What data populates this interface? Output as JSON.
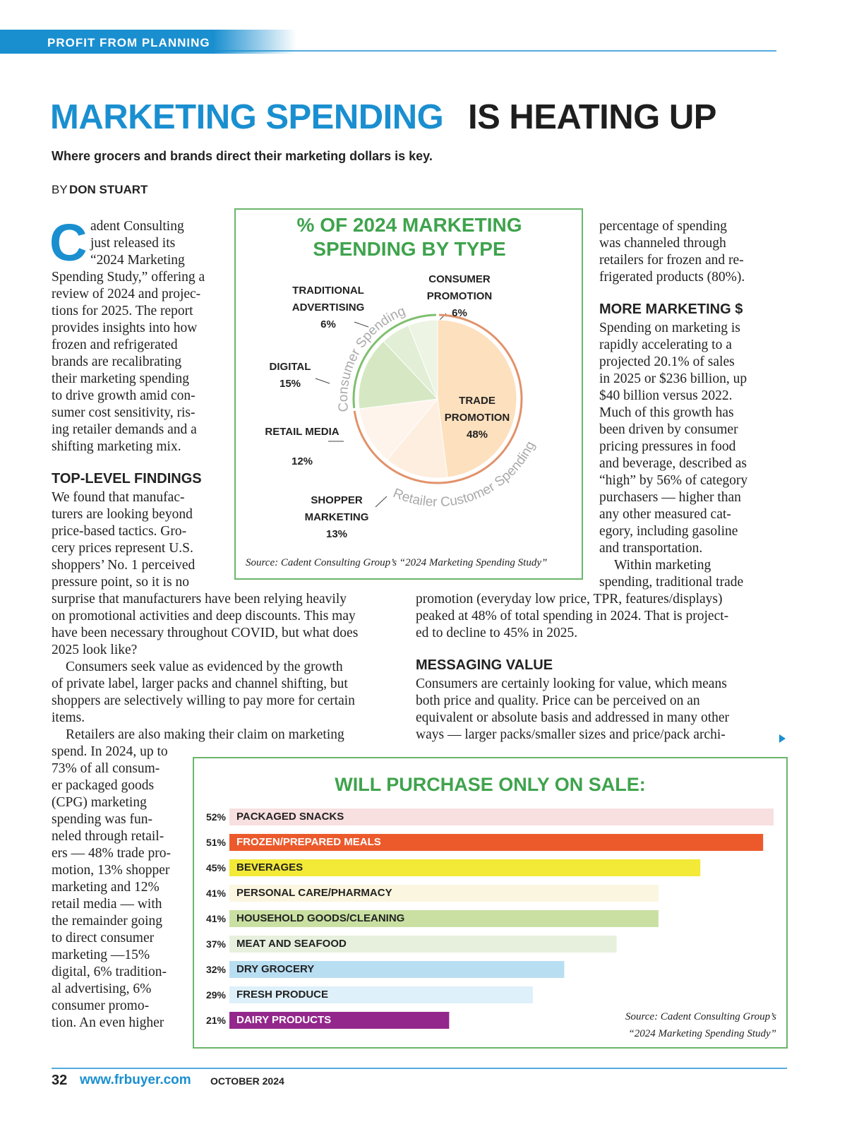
{
  "header": {
    "section": "PROFIT FROM PLANNING",
    "title_blue": "MARKETING SPENDING",
    "title_black": "IS HEATING UP",
    "deck": "Where grocers and brands direct their marketing dollars is key.",
    "byline_prefix": "BY",
    "byline_name": "DON STUART"
  },
  "drop_cap": "C",
  "body": {
    "intro": [
      "adent Consulting",
      "just released its",
      "“2024 Marketing",
      "Spending Study,” offering a",
      "review of 2024 and projec-",
      "tions for 2025. The report",
      "provides insights into how",
      "frozen and refrigerated",
      "brands are recalibrating",
      "their marketing spending",
      "to drive growth amid con-",
      "sumer cost sensitivity, ris-",
      "ing retailer demands and a",
      "shifting marketing mix."
    ],
    "heading_findings": "TOP-LEVEL FINDINGS",
    "findings": [
      "We found that manufac-",
      "turers are looking beyond",
      "price-based tactics. Gro-",
      "cery prices represent U.S.",
      "shoppers’ No. 1 perceived",
      "pressure point, so it is no",
      "surprise that manufacturers have been relying heavily",
      "on promotional activities and deep discounts. This may",
      "have been necessary throughout COVID, but what does",
      "2025 look like?",
      "Consumers seek value as evidenced by the growth",
      "of private label, larger packs and channel shifting, but",
      "shoppers are selectively willing to pay more for certain",
      "items.",
      "Retailers are also making their claim on marketing",
      "spend. In 2024, up to",
      "73% of all consum-",
      "er packaged goods",
      "(CPG) marketing",
      "spending was fun-",
      "neled through retail-",
      "ers — 48% trade pro-",
      "motion, 13% shopper",
      "marketing and 12%",
      "retail media — with",
      "the remainder going",
      "to direct consumer",
      "marketing —15%",
      "digital, 6% tradition-",
      "al advertising, 6%",
      "consumer promo-",
      "tion. An even higher"
    ],
    "intro_continued": [
      "percentage of spending",
      "was channeled through",
      "retailers for frozen and re-",
      "frigerated products (80%)."
    ],
    "heading_more": "MORE MARKETING $",
    "more": [
      "Spending on marketing is",
      "rapidly accelerating to a",
      "projected 20.1% of sales",
      "in 2025 or $236 billion, up",
      "$40 billion versus 2022.",
      "Much of this growth has",
      "been driven by consumer",
      "pricing pressures in food",
      "and beverage, described as",
      "“high” by 56% of category",
      "purchasers — higher than",
      "any other measured cat-",
      "egory, including gasoline",
      "and transportation.",
      "Within marketing",
      "spending, traditional trade",
      "promotion (everyday low price, TPR, features/displays)",
      "peaked at 48% of total spending in 2024. That is project-",
      "ed to decline to 45% in 2025."
    ],
    "heading_messaging": "MESSAGING VALUE",
    "messaging": [
      "Consumers are certainly looking for value, which means",
      "both price and quality. Price can be perceived on an",
      "equivalent or absolute basis and addressed in many other",
      "ways — larger packs/smaller sizes and price/pack archi-"
    ]
  },
  "chart_data": [
    {
      "type": "pie",
      "title": "% OF 2024 MARKETING SPENDING BY TYPE",
      "categories": [
        "TRADE PROMOTION",
        "SHOPPER MARKETING",
        "RETAIL MEDIA",
        "DIGITAL",
        "TRADITIONAL ADVERTISING",
        "CONSUMER PROMOTION"
      ],
      "values": [
        48,
        13,
        12,
        15,
        6,
        6
      ],
      "value_labels": [
        "48%",
        "13%",
        "12%",
        "15%",
        "6%",
        "6%"
      ],
      "colors": [
        "#fde0bd",
        "#fdeedf",
        "#fef4ec",
        "#d6e8c3",
        "#e2eed5",
        "#edf4e4"
      ],
      "groups": [
        {
          "name": "Retailer Customer Spending",
          "color": "#e1926a"
        },
        {
          "name": "Consumer Spending",
          "color": "#7fbf6e"
        }
      ],
      "source": "Source: Cadent Consulting Group’s “2024 Marketing Spending Study”"
    },
    {
      "type": "bar",
      "title": "WILL PURCHASE ONLY ON SALE:",
      "categories": [
        "PACKAGED SNACKS",
        "FROZEN/PREPARED MEALS",
        "BEVERAGES",
        "PERSONAL CARE/PHARMACY",
        "HOUSEHOLD GOODS/CLEANING",
        "MEAT AND SEAFOOD",
        "DRY GROCERY",
        "FRESH PRODUCE",
        "DAIRY PRODUCTS"
      ],
      "values": [
        52,
        51,
        45,
        41,
        41,
        37,
        32,
        29,
        21
      ],
      "value_labels": [
        "52%",
        "51%",
        "45%",
        "41%",
        "41%",
        "37%",
        "32%",
        "29%",
        "21%"
      ],
      "colors": [
        "#f8dfe0",
        "#ec5a2c",
        "#f3e937",
        "#fbf6df",
        "#c9e0a2",
        "#e7f0dd",
        "#b8def2",
        "#def0f9",
        "#93278c"
      ],
      "label_colors": [
        "#222222",
        "#ffffff",
        "#222222",
        "#222222",
        "#222222",
        "#222222",
        "#222222",
        "#222222",
        "#ffffff"
      ],
      "xlim": [
        0,
        52
      ],
      "source": "Source: Cadent Consulting Group’s “2024 Marketing Spending Study”"
    }
  ],
  "footer": {
    "page": "32",
    "url": "www.frbuyer.com",
    "date": "OCTOBER 2024"
  }
}
